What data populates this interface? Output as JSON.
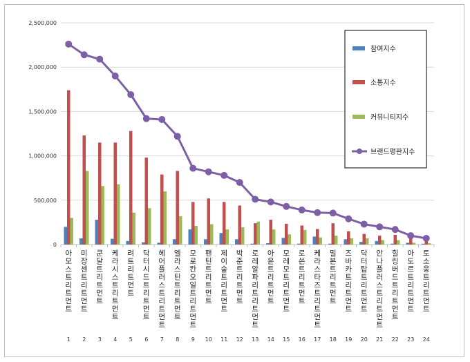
{
  "chart_data": {
    "type": "bar",
    "categories": [
      "아모스트리트먼트",
      "미장센트리트먼트",
      "쿤달트리트먼트",
      "케라시스트리트먼트",
      "려트리트먼트",
      "닥터시드트리트먼트",
      "헤어플러스트리트먼트",
      "엘라스틴트리트먼트",
      "모로칸오일트리트먼트",
      "팬틴트리트먼트",
      "제이숲트리트먼트",
      "박준트리트먼트",
      "로레알파리트리트먼트",
      "아윤트리트먼트",
      "모레모트리트먼트",
      "로쓴트리트먼트",
      "케라스타즈트리트먼트",
      "밀본트리트먼트",
      "즈바카트리트먼트",
      "닥터탑트리트먼트",
      "안나플러스트리트먼트",
      "힐링버드트리트먼트",
      "아도르트리트먼트",
      "토소웅트리트먼트"
    ],
    "rank_labels": [
      "1",
      "2",
      "3",
      "4",
      "5",
      "6",
      "7",
      "8",
      "9",
      "10",
      "11",
      "12",
      "13",
      "14",
      "15",
      "16",
      "17",
      "18",
      "19",
      "20",
      "21",
      "22",
      "23",
      "24"
    ],
    "series": [
      {
        "name": "참여지수",
        "kind": "bar",
        "color": "#4f81bd",
        "values": [
          200000,
          70000,
          280000,
          65000,
          40000,
          25000,
          20000,
          60000,
          170000,
          60000,
          130000,
          60000,
          10000,
          15000,
          75000,
          10000,
          90000,
          10000,
          60000,
          30000,
          40000,
          10000,
          20000,
          10000
        ]
      },
      {
        "name": "소통지수",
        "kind": "bar",
        "color": "#c0504d",
        "values": [
          1740000,
          1230000,
          1150000,
          1150000,
          1280000,
          980000,
          790000,
          830000,
          480000,
          520000,
          480000,
          440000,
          240000,
          280000,
          235000,
          215000,
          175000,
          240000,
          150000,
          120000,
          100000,
          110000,
          80000,
          40000
        ]
      },
      {
        "name": "커뮤니티지수",
        "kind": "bar",
        "color": "#9bbb59",
        "values": [
          300000,
          830000,
          660000,
          680000,
          360000,
          410000,
          600000,
          320000,
          210000,
          230000,
          170000,
          195000,
          260000,
          170000,
          115000,
          165000,
          80000,
          100000,
          70000,
          70000,
          50000,
          50000,
          20000,
          15000
        ]
      },
      {
        "name": "브랜드평판지수",
        "kind": "line",
        "color": "#7d5fa5",
        "values": [
          2260000,
          2140000,
          2090000,
          1900000,
          1690000,
          1420000,
          1410000,
          1220000,
          860000,
          820000,
          780000,
          700000,
          510000,
          480000,
          430000,
          390000,
          360000,
          355000,
          290000,
          230000,
          200000,
          170000,
          100000,
          70000
        ]
      }
    ],
    "ylim": [
      0,
      2500000
    ],
    "yticks": [
      "0",
      "500,000",
      "1,000,000",
      "1,500,000",
      "2,000,000",
      "2,500,000"
    ],
    "grid": true,
    "legend": "top-right"
  }
}
